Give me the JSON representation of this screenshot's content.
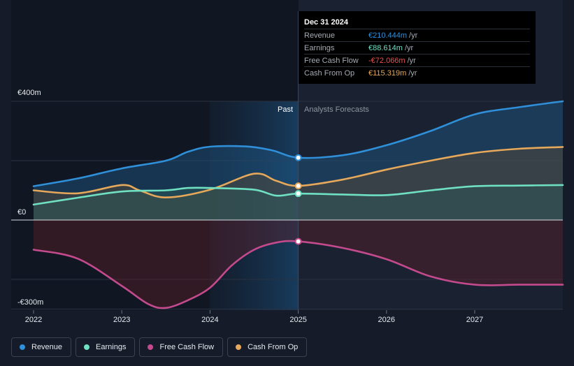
{
  "chart_data": {
    "type": "area",
    "title": "",
    "y_axis": {
      "min": -300,
      "max": 400,
      "top_label": "€400m",
      "zero_label": "€0",
      "bottom_label": "-€300m"
    },
    "x_axis": {
      "min": 2021.8,
      "max": 2027.99,
      "ticks": [
        2022,
        2023,
        2024,
        2025,
        2026,
        2027
      ],
      "tick_labels": [
        "2022",
        "2023",
        "2024",
        "2025",
        "2026",
        "2027"
      ]
    },
    "past_label": "Past",
    "forecast_label": "Analysts Forecasts",
    "divider_x": 2025.0,
    "past_band_start_x": 2024.0,
    "series": [
      {
        "name": "Revenue",
        "key": "revenue",
        "color": "#2f8fd8",
        "fill": "#1f5a8a",
        "points": [
          [
            2022.0,
            114
          ],
          [
            2022.5,
            140
          ],
          [
            2023.0,
            174
          ],
          [
            2023.5,
            200
          ],
          [
            2023.75,
            230
          ],
          [
            2024.0,
            247
          ],
          [
            2024.4,
            248
          ],
          [
            2024.7,
            235
          ],
          [
            2025.0,
            210
          ],
          [
            2025.5,
            218
          ],
          [
            2026.0,
            252
          ],
          [
            2026.5,
            300
          ],
          [
            2027.0,
            356
          ],
          [
            2027.5,
            380
          ],
          [
            2028.0,
            400
          ]
        ]
      },
      {
        "name": "Cash From Op",
        "key": "cash_from_op",
        "color": "#e6a85a",
        "fill": "#5c4a33",
        "points": [
          [
            2022.0,
            100
          ],
          [
            2022.5,
            90
          ],
          [
            2023.0,
            118
          ],
          [
            2023.2,
            100
          ],
          [
            2023.5,
            76
          ],
          [
            2024.0,
            102
          ],
          [
            2024.5,
            156
          ],
          [
            2024.75,
            132
          ],
          [
            2025.0,
            115
          ],
          [
            2025.5,
            136
          ],
          [
            2026.0,
            170
          ],
          [
            2026.5,
            200
          ],
          [
            2027.0,
            226
          ],
          [
            2027.5,
            240
          ],
          [
            2028.0,
            246
          ]
        ]
      },
      {
        "name": "Earnings",
        "key": "earnings",
        "color": "#6fe0c2",
        "fill": "#2f5a58",
        "points": [
          [
            2022.0,
            52
          ],
          [
            2022.5,
            75
          ],
          [
            2023.0,
            96
          ],
          [
            2023.5,
            100
          ],
          [
            2023.75,
            108
          ],
          [
            2024.0,
            108
          ],
          [
            2024.5,
            102
          ],
          [
            2024.75,
            82
          ],
          [
            2025.0,
            89
          ],
          [
            2025.5,
            86
          ],
          [
            2026.0,
            84
          ],
          [
            2026.5,
            100
          ],
          [
            2027.0,
            114
          ],
          [
            2027.5,
            116
          ],
          [
            2028.0,
            118
          ]
        ]
      },
      {
        "name": "Free Cash Flow",
        "key": "free_cash_flow",
        "color": "#c44a8e",
        "fill": "#5a1f2a",
        "points": [
          [
            2022.0,
            -100
          ],
          [
            2022.5,
            -130
          ],
          [
            2023.0,
            -222
          ],
          [
            2023.3,
            -283
          ],
          [
            2023.5,
            -296
          ],
          [
            2023.75,
            -270
          ],
          [
            2024.0,
            -228
          ],
          [
            2024.25,
            -152
          ],
          [
            2024.5,
            -100
          ],
          [
            2024.75,
            -76
          ],
          [
            2025.0,
            -72
          ],
          [
            2025.5,
            -94
          ],
          [
            2026.0,
            -132
          ],
          [
            2026.5,
            -190
          ],
          [
            2027.0,
            -218
          ],
          [
            2027.5,
            -218
          ],
          [
            2028.0,
            -218
          ]
        ]
      }
    ],
    "legend": [
      "Revenue",
      "Earnings",
      "Free Cash Flow",
      "Cash From Op"
    ]
  },
  "tooltip": {
    "date": "Dec 31 2024",
    "rows": [
      {
        "label": "Revenue",
        "value": "€210.444m",
        "unit": "/yr",
        "color": "#2f8fd8"
      },
      {
        "label": "Earnings",
        "value": "€88.614m",
        "unit": "/yr",
        "color": "#6fe0c2"
      },
      {
        "label": "Free Cash Flow",
        "value": "-€72.066m",
        "unit": "/yr",
        "color": "#f0504a"
      },
      {
        "label": "Cash From Op",
        "value": "€115.319m",
        "unit": "/yr",
        "color": "#e6a85a"
      }
    ]
  },
  "legend": {
    "items": [
      {
        "label": "Revenue",
        "color": "#2f8fd8"
      },
      {
        "label": "Earnings",
        "color": "#6fe0c2"
      },
      {
        "label": "Free Cash Flow",
        "color": "#c44a8e"
      },
      {
        "label": "Cash From Op",
        "color": "#e6a85a"
      }
    ]
  }
}
